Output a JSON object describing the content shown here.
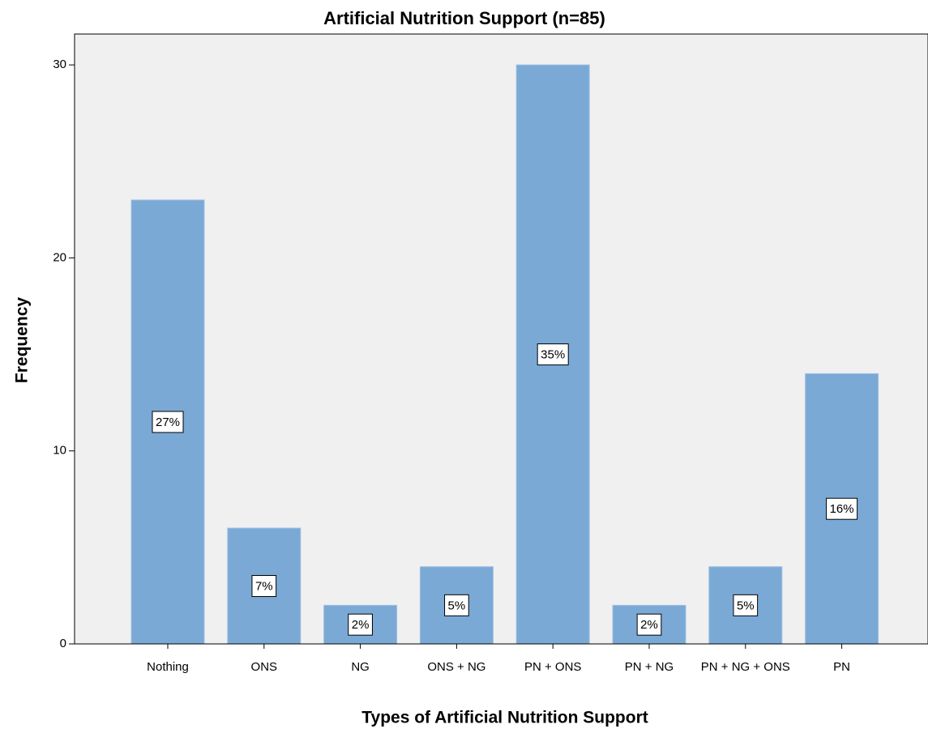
{
  "chart_data": {
    "type": "bar",
    "title": "Artificial Nutrition Support (n=85)",
    "x_label": "Types of Artificial Nutrition Support",
    "y_label": "Frequency",
    "categories": [
      "Nothing",
      "ONS",
      "NG",
      "ONS + NG",
      "PN + ONS",
      "PN + NG",
      "PN + NG + ONS",
      "PN"
    ],
    "values": [
      23,
      6,
      2,
      4,
      30,
      2,
      4,
      14
    ],
    "percent_labels": [
      "27%",
      "7%",
      "2%",
      "5%",
      "35%",
      "2%",
      "5%",
      "16%"
    ],
    "color": "#7ba9d6",
    "ylim": [
      0,
      31.6
    ],
    "yticks": [
      0,
      10,
      20,
      30
    ]
  }
}
